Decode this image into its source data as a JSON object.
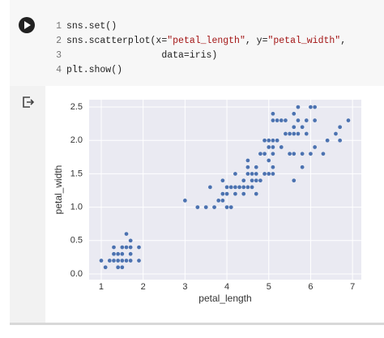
{
  "cell": {
    "lines": [
      {
        "number": 1,
        "code": "sns.set()"
      },
      {
        "number": 2,
        "code": "sns.scatterplot(x=\"petal_length\", y=\"petal_width\","
      },
      {
        "number": 3,
        "code": "                 data=iris)"
      },
      {
        "number": 4,
        "code": "plt.show()"
      }
    ]
  },
  "chart_data": {
    "type": "scatter",
    "xlabel": "petal_length",
    "ylabel": "petal_width",
    "color": "#4c72b0",
    "grid": true,
    "xlim": [
      0.71,
      7.21
    ],
    "xticks": [
      1,
      2,
      3,
      4,
      5,
      6,
      7
    ],
    "ylim": [
      -0.085,
      2.61
    ],
    "yticks": [
      0.0,
      0.5,
      1.0,
      1.5,
      2.0,
      2.5
    ],
    "ytick_labels": [
      "0.0",
      "0.5",
      "1.0",
      "1.5",
      "2.0",
      "2.5"
    ],
    "x": [
      1.4,
      1.4,
      1.3,
      1.5,
      1.4,
      1.7,
      1.4,
      1.5,
      1.4,
      1.5,
      1.5,
      1.6,
      1.4,
      1.1,
      1.2,
      1.5,
      1.3,
      1.4,
      1.7,
      1.5,
      1.7,
      1.5,
      1.0,
      1.7,
      1.9,
      1.6,
      1.6,
      1.5,
      1.4,
      1.6,
      1.6,
      1.5,
      1.5,
      1.4,
      1.5,
      1.2,
      1.3,
      1.4,
      1.3,
      1.5,
      1.3,
      1.3,
      1.3,
      1.6,
      1.9,
      1.4,
      1.6,
      1.4,
      1.5,
      1.4,
      4.7,
      4.5,
      4.9,
      4.0,
      4.6,
      4.5,
      4.7,
      3.3,
      4.6,
      3.9,
      3.5,
      4.2,
      4.0,
      4.7,
      3.6,
      4.4,
      4.5,
      4.1,
      4.5,
      3.9,
      4.8,
      4.0,
      4.9,
      4.7,
      4.3,
      4.4,
      4.8,
      5.0,
      4.5,
      3.5,
      3.8,
      3.7,
      3.9,
      5.1,
      4.5,
      4.5,
      4.7,
      4.4,
      4.1,
      4.0,
      4.4,
      4.6,
      4.0,
      3.3,
      4.2,
      4.2,
      4.2,
      4.3,
      3.0,
      4.1,
      6.0,
      5.1,
      5.9,
      5.6,
      5.8,
      6.6,
      4.5,
      6.3,
      5.8,
      6.1,
      5.1,
      5.3,
      5.5,
      5.0,
      5.1,
      5.3,
      5.5,
      6.7,
      6.9,
      5.0,
      5.7,
      4.9,
      6.7,
      4.9,
      5.7,
      6.0,
      4.8,
      4.9,
      5.6,
      5.8,
      6.1,
      6.4,
      5.6,
      5.1,
      5.6,
      6.1,
      5.6,
      5.5,
      4.8,
      5.4,
      5.6,
      5.1,
      5.1,
      5.9,
      5.7,
      5.2,
      5.0,
      5.2,
      5.4,
      5.1
    ],
    "values": [
      0.2,
      0.2,
      0.2,
      0.2,
      0.2,
      0.4,
      0.3,
      0.2,
      0.2,
      0.1,
      0.2,
      0.2,
      0.1,
      0.1,
      0.2,
      0.4,
      0.4,
      0.3,
      0.3,
      0.3,
      0.2,
      0.4,
      0.2,
      0.5,
      0.2,
      0.2,
      0.4,
      0.2,
      0.2,
      0.2,
      0.2,
      0.4,
      0.1,
      0.2,
      0.2,
      0.2,
      0.2,
      0.1,
      0.2,
      0.2,
      0.3,
      0.3,
      0.2,
      0.6,
      0.4,
      0.3,
      0.2,
      0.2,
      0.2,
      0.2,
      1.4,
      1.5,
      1.5,
      1.3,
      1.5,
      1.3,
      1.6,
      1.0,
      1.3,
      1.4,
      1.0,
      1.5,
      1.0,
      1.4,
      1.3,
      1.4,
      1.5,
      1.0,
      1.5,
      1.1,
      1.8,
      1.3,
      1.5,
      1.2,
      1.3,
      1.4,
      1.4,
      1.7,
      1.5,
      1.0,
      1.1,
      1.0,
      1.2,
      1.6,
      1.5,
      1.6,
      1.5,
      1.3,
      1.3,
      1.3,
      1.2,
      1.4,
      1.2,
      1.0,
      1.3,
      1.2,
      1.3,
      1.3,
      1.1,
      1.3,
      2.5,
      1.9,
      2.1,
      1.8,
      2.2,
      2.1,
      1.7,
      1.8,
      1.8,
      2.5,
      2.0,
      1.9,
      2.1,
      2.0,
      2.4,
      2.3,
      1.8,
      2.2,
      2.3,
      1.5,
      2.3,
      2.0,
      2.0,
      1.8,
      2.1,
      1.8,
      1.8,
      1.8,
      2.1,
      1.6,
      1.9,
      2.0,
      2.2,
      1.5,
      1.4,
      2.3,
      2.4,
      1.8,
      1.8,
      2.1,
      2.4,
      2.3,
      1.9,
      2.3,
      2.5,
      2.3,
      1.9,
      2.0,
      2.3,
      1.8
    ]
  }
}
